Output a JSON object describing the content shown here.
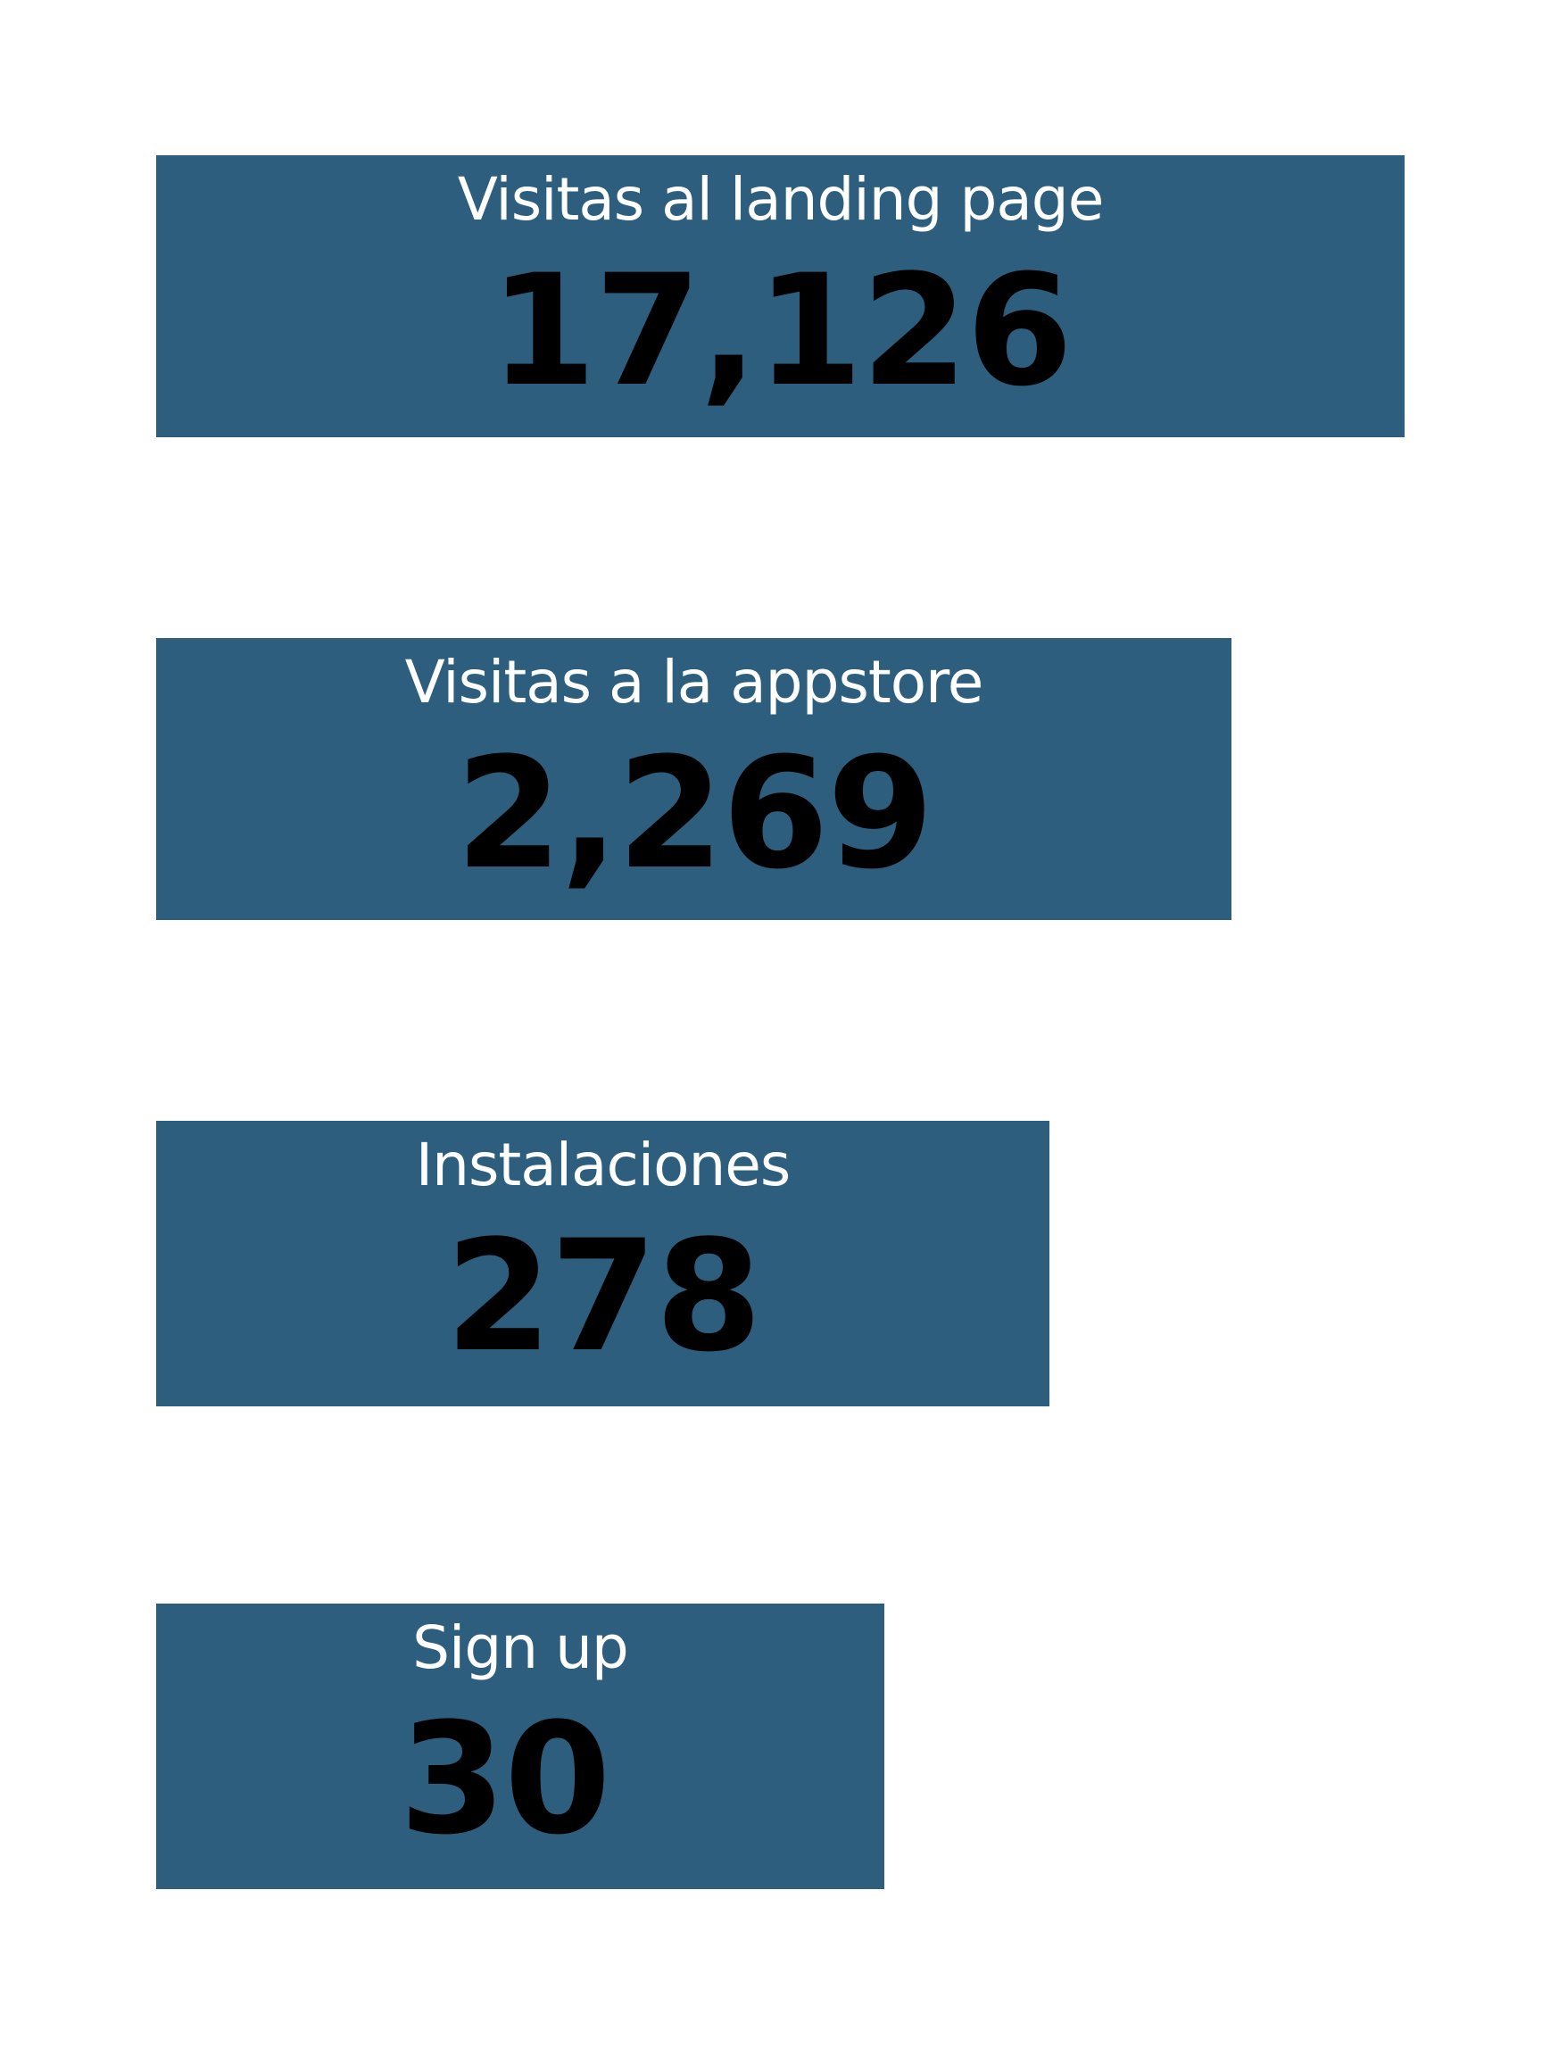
{
  "chart_data": {
    "type": "bar",
    "orientation": "horizontal",
    "bar_color": "#2e5e7e",
    "label_color": "#ffffff",
    "value_color": "#000000",
    "background": "#ffffff",
    "categories": [
      "Visitas al landing page",
      "Visitas a la appstore",
      "Instalaciones",
      "Sign up"
    ],
    "values": [
      17126,
      2269,
      278,
      30
    ],
    "value_labels": [
      "17,126",
      "2,269",
      "278",
      "30"
    ]
  }
}
